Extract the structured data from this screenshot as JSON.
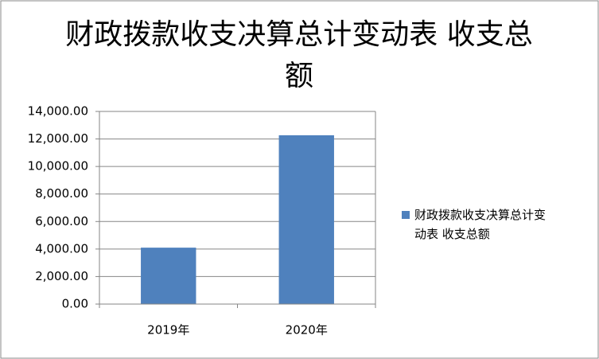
{
  "chart_data": {
    "type": "bar",
    "title": "财政拨款收支决算总计变动表 收支总额",
    "categories": [
      "2019年",
      "2020年"
    ],
    "series": [
      {
        "name": "财政拨款收支决算总计变动表 收支总额",
        "color": "#4f81bd",
        "values": [
          4100,
          12270
        ]
      }
    ],
    "ylim": [
      0,
      14000
    ],
    "yticks": [
      {
        "value": 0,
        "label": "0.00"
      },
      {
        "value": 2000,
        "label": "2,000.00"
      },
      {
        "value": 4000,
        "label": "4,000.00"
      },
      {
        "value": 6000,
        "label": "6,000.00"
      },
      {
        "value": 8000,
        "label": "8,000.00"
      },
      {
        "value": 10000,
        "label": "10,000.00"
      },
      {
        "value": 12000,
        "label": "12,000.00"
      },
      {
        "value": 14000,
        "label": "14,000.00"
      }
    ],
    "grid": true
  }
}
